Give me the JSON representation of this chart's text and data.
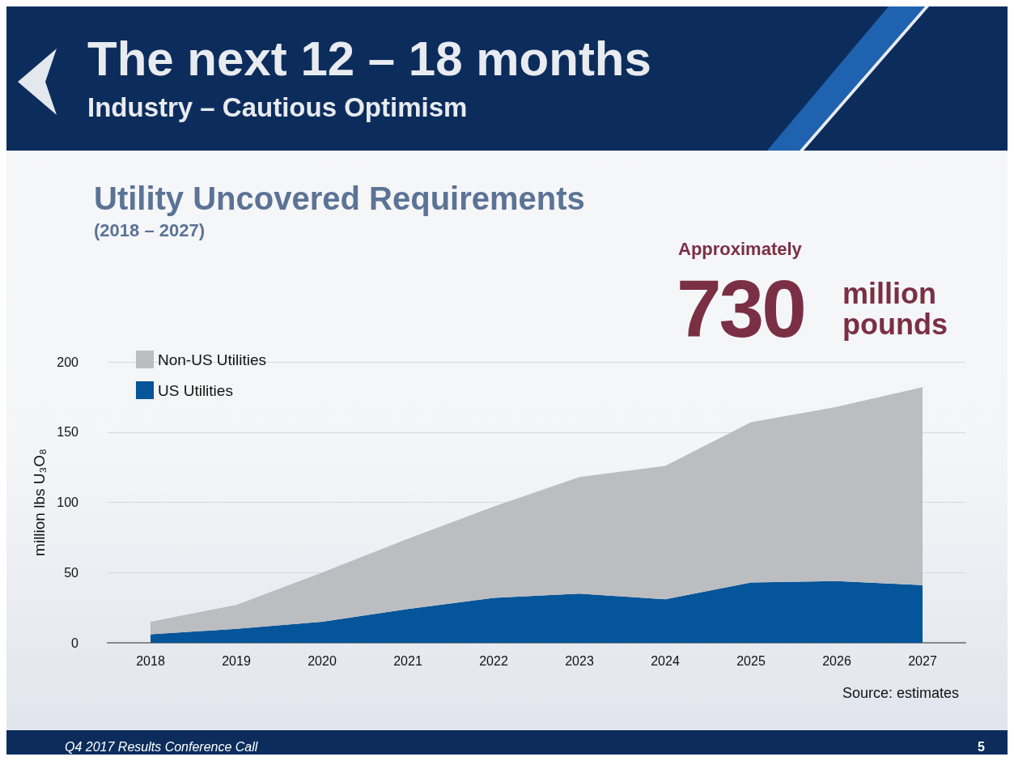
{
  "chart_data": {
    "type": "area",
    "title": "The next 12 – 18 months",
    "subtitle": "Industry – Cautious Optimism",
    "ylabel": "million lbs U₃O₈",
    "annotations": [
      "Utility Uncovered Requirements",
      "(2018 – 2027)",
      "Approximately",
      "730",
      "million pounds",
      "Source: estimates",
      "Q4 2017 Results Conference Call",
      "5"
    ],
    "categories": [
      "2018",
      "2019",
      "2020",
      "2021",
      "2022",
      "2023",
      "2024",
      "2025",
      "2026",
      "2027"
    ],
    "stacked": true,
    "series": [
      {
        "name": "US Utilities",
        "color": "#04559a",
        "values": [
          6,
          10,
          15,
          24,
          32,
          35,
          31,
          43,
          44,
          41
        ]
      },
      {
        "name": "Non-US Utilities",
        "color": "#bcbdc1",
        "values": [
          9,
          17,
          35,
          50,
          65,
          83,
          95,
          114,
          124,
          141
        ]
      }
    ],
    "ylim": [
      0,
      200
    ],
    "yticks": [
      0,
      50,
      100,
      150,
      200
    ],
    "grid": "y",
    "legend": "top left"
  }
}
